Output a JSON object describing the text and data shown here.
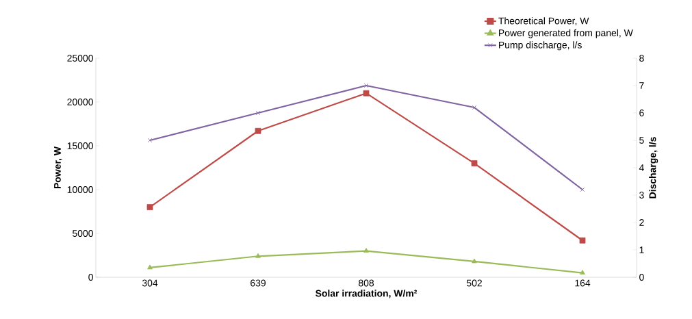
{
  "chart_data": {
    "type": "line",
    "xlabel": "Solar irradiation, W/m²",
    "ylabel": "Power, W",
    "y2label": "Discharge, l/s",
    "categories": [
      "304",
      "639",
      "808",
      "502",
      "164"
    ],
    "series": [
      {
        "name": "Theoretical Power, W",
        "color": "#be4b48",
        "marker": "square",
        "values": [
          8000,
          16700,
          21000,
          13000,
          4200
        ]
      },
      {
        "name": "Power generated from panel, W",
        "color": "#9bbb59",
        "marker": "triangle",
        "values": [
          1100,
          2400,
          3000,
          1800,
          500
        ]
      },
      {
        "name": "Pump discharge, l/s",
        "color": "#8064a2",
        "marker": "cross",
        "axis": "y2",
        "values": [
          5,
          6,
          7,
          6.2,
          3.2
        ]
      }
    ],
    "ylim": [
      0,
      25000
    ],
    "yticks": [
      0,
      5000,
      10000,
      15000,
      20000,
      25000
    ],
    "y2lim": [
      0,
      8
    ],
    "y2ticks": [
      0,
      1,
      2,
      3,
      4,
      5,
      6,
      7,
      8
    ],
    "grid": false,
    "legend": "top right",
    "line_style": "solid"
  }
}
